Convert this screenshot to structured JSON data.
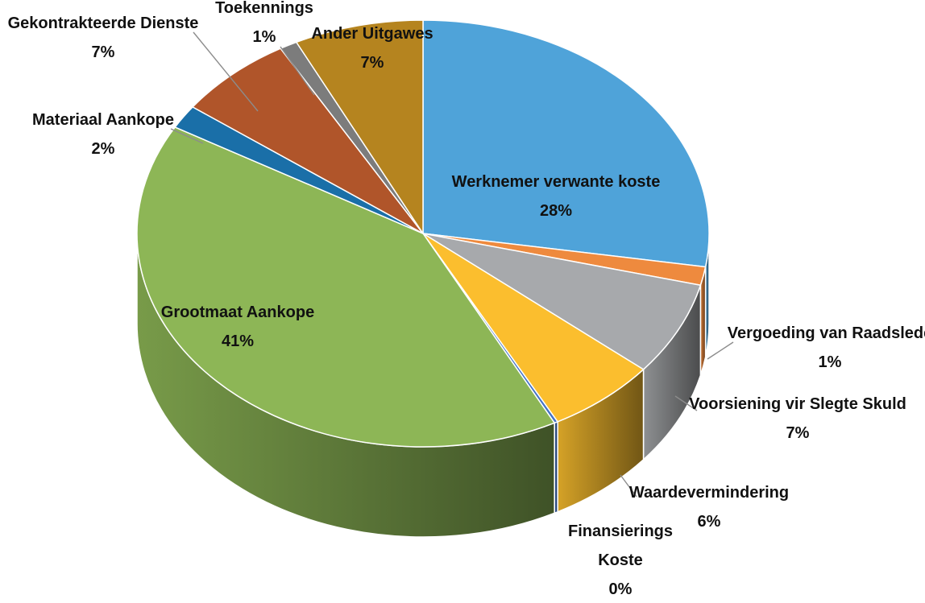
{
  "chart_data": {
    "type": "pie",
    "style": "3d",
    "title": "",
    "slices": [
      {
        "label": "Werknemer verwante koste",
        "display": "28%",
        "value": 27.5,
        "color": "#4fa3d9"
      },
      {
        "label": "Vergoeding van Raadslede",
        "display": "1%",
        "value": 1.4,
        "color": "#ee8a3e"
      },
      {
        "label": "Voorsiening vir Slegte Skuld",
        "display": "7%",
        "value": 7.1,
        "color": "#a7a9ac"
      },
      {
        "label": "Waardevermindering",
        "display": "6%",
        "value": 6.2,
        "color": "#fbbe2e"
      },
      {
        "label": "Finansierings Koste",
        "display": "0%",
        "value": 0.2,
        "color": "#4472c4"
      },
      {
        "label": "Grootmaat Aankope",
        "display": "41%",
        "value": 40.9,
        "color": "#8db656"
      },
      {
        "label": "Materiaal Aankope",
        "display": "2%",
        "value": 1.8,
        "color": "#1a6fa8"
      },
      {
        "label": "Gekontrakteerde Dienste",
        "display": "7%",
        "value": 6.6,
        "color": "#b0552a"
      },
      {
        "label": "Toekennings",
        "display": "1%",
        "value": 1.0,
        "color": "#7c7c7c"
      },
      {
        "label": "Ander Uitgawes",
        "display": "7%",
        "value": 7.3,
        "color": "#b5841f"
      }
    ]
  }
}
